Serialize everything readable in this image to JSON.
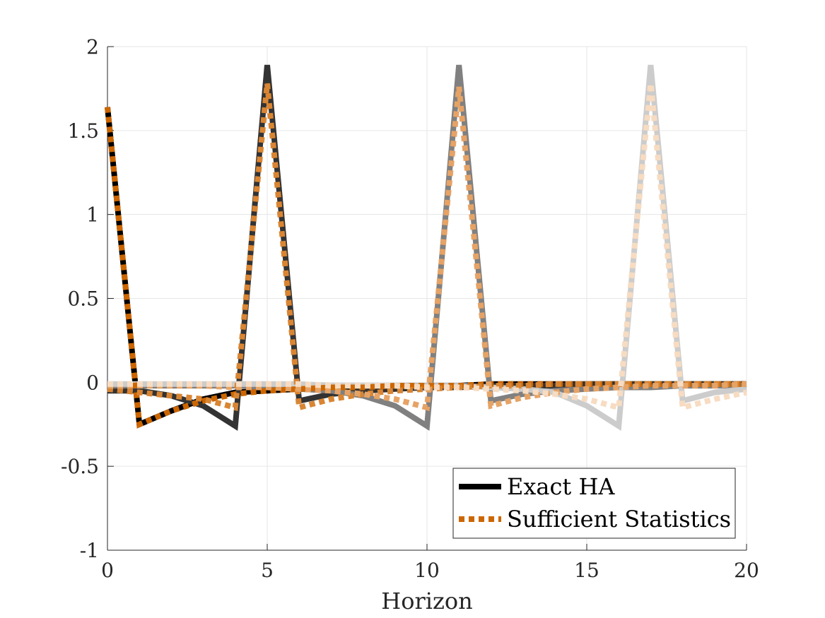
{
  "chart_data": {
    "type": "line",
    "xlabel": "Horizon",
    "ylabel": "",
    "title": "",
    "xlim": [
      0,
      20
    ],
    "ylim": [
      -1,
      2
    ],
    "xticks": [
      0,
      5,
      10,
      15,
      20
    ],
    "xtick_labels": [
      "0",
      "5",
      "10",
      "15",
      "20"
    ],
    "yticks": [
      -1,
      -0.5,
      0,
      0.5,
      1,
      1.5,
      2
    ],
    "ytick_labels": [
      "-1",
      "-0.5",
      "0",
      "0.5",
      "1",
      "1.5",
      "2"
    ],
    "grid": true,
    "legend_position": "bottom-right",
    "legend": [
      {
        "label": "Exact HA",
        "style": "solid",
        "color": "#000000"
      },
      {
        "label": "Sufficient Statistics",
        "style": "dotted",
        "color": "#cc6600"
      }
    ],
    "x": [
      0,
      1,
      2,
      3,
      4,
      5,
      6,
      7,
      8,
      9,
      10,
      11,
      12,
      13,
      14,
      15,
      16,
      17,
      18,
      19,
      20
    ],
    "series": [
      {
        "group": "Exact HA",
        "color": "#000000",
        "style": "solid",
        "values": [
          1.64,
          -0.25,
          -0.17,
          -0.1,
          -0.06,
          -0.05,
          -0.04,
          -0.03,
          -0.03,
          -0.02,
          -0.02,
          -0.02,
          -0.01,
          -0.01,
          -0.01,
          -0.01,
          -0.01,
          -0.01,
          -0.01,
          -0.01,
          -0.01
        ]
      },
      {
        "group": "Exact HA",
        "color": "#333333",
        "style": "solid",
        "values": [
          -0.05,
          -0.05,
          -0.08,
          -0.14,
          -0.26,
          1.89,
          -0.11,
          -0.07,
          -0.05,
          -0.04,
          -0.03,
          -0.03,
          -0.02,
          -0.02,
          -0.02,
          -0.01,
          -0.01,
          -0.01,
          -0.01,
          -0.01,
          -0.01
        ]
      },
      {
        "group": "Exact HA",
        "color": "#808080",
        "style": "solid",
        "values": [
          -0.02,
          -0.02,
          -0.02,
          -0.02,
          -0.02,
          -0.03,
          -0.04,
          -0.05,
          -0.08,
          -0.14,
          -0.26,
          1.89,
          -0.11,
          -0.07,
          -0.05,
          -0.04,
          -0.03,
          -0.03,
          -0.02,
          -0.02,
          -0.02
        ]
      },
      {
        "group": "Exact HA",
        "color": "#cccccc",
        "style": "solid",
        "values": [
          -0.01,
          -0.01,
          -0.01,
          -0.01,
          -0.01,
          -0.01,
          -0.01,
          -0.02,
          -0.02,
          -0.02,
          -0.02,
          -0.02,
          -0.03,
          -0.04,
          -0.06,
          -0.14,
          -0.26,
          1.89,
          -0.11,
          -0.06,
          -0.04
        ]
      },
      {
        "group": "Sufficient Statistics",
        "color": "#cc6600",
        "style": "dotted",
        "values": [
          1.64,
          -0.25,
          -0.17,
          -0.11,
          -0.07,
          -0.05,
          -0.04,
          -0.03,
          -0.03,
          -0.02,
          -0.02,
          -0.02,
          -0.01,
          -0.01,
          -0.01,
          -0.01,
          -0.01,
          -0.01,
          -0.01,
          -0.01,
          -0.01
        ]
      },
      {
        "group": "Sufficient Statistics",
        "color": "#d98533",
        "style": "dotted",
        "values": [
          -0.04,
          -0.06,
          -0.08,
          -0.1,
          -0.15,
          1.78,
          -0.15,
          -0.1,
          -0.07,
          -0.05,
          -0.04,
          -0.03,
          -0.02,
          -0.02,
          -0.01,
          -0.01,
          -0.01,
          -0.01,
          -0.01,
          -0.01,
          -0.01
        ]
      },
      {
        "group": "Sufficient Statistics",
        "color": "#e6a366",
        "style": "dotted",
        "values": [
          -0.02,
          -0.02,
          -0.02,
          -0.02,
          -0.03,
          -0.03,
          -0.04,
          -0.05,
          -0.07,
          -0.1,
          -0.15,
          1.76,
          -0.14,
          -0.09,
          -0.06,
          -0.04,
          -0.03,
          -0.02,
          -0.02,
          -0.02,
          -0.01
        ]
      },
      {
        "group": "Sufficient Statistics",
        "color": "#f7dcc2",
        "style": "dotted",
        "values": [
          -0.01,
          -0.01,
          -0.01,
          -0.01,
          -0.01,
          -0.01,
          -0.01,
          -0.02,
          -0.02,
          -0.02,
          -0.03,
          -0.03,
          -0.04,
          -0.05,
          -0.07,
          -0.1,
          -0.15,
          1.78,
          -0.15,
          -0.1,
          -0.06
        ]
      }
    ]
  }
}
